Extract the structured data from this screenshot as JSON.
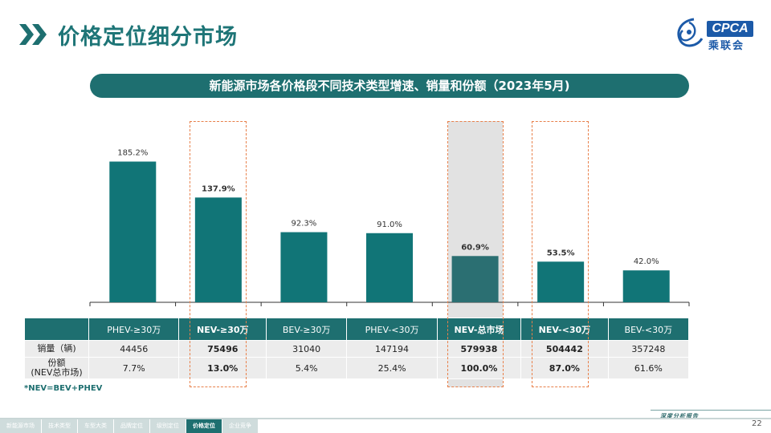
{
  "header": {
    "title": "价格定位细分市场",
    "logo_text": "CPCA",
    "logo_sub": "乘联会"
  },
  "subtitle": "新能源市场各价格段不同技术类型增速、销量和份额（2023年5月)",
  "chart_data": {
    "type": "bar",
    "categories": [
      "PHEV-≥30万",
      "NEV-≥30万",
      "BEV-≥30万",
      "PHEV-<30万",
      "NEV-总市场",
      "NEV-<30万",
      "BEV-<30万"
    ],
    "values": [
      185.2,
      137.9,
      92.3,
      91.0,
      60.9,
      53.5,
      42.0
    ],
    "data_labels": [
      "185.2%",
      "137.9%",
      "92.3%",
      "91.0%",
      "60.9%",
      "53.5%",
      "42.0%"
    ],
    "bold_labels": [
      false,
      true,
      false,
      false,
      true,
      true,
      false
    ],
    "ylim": [
      0,
      210
    ],
    "bar_color": "#117577",
    "total_bar_color": "#2b6f72"
  },
  "table": {
    "headers": [
      "PHEV-≥30万",
      "NEV-≥30万",
      "BEV-≥30万",
      "PHEV-<30万",
      "NEV-总市场",
      "NEV-<30万",
      "BEV-<30万"
    ],
    "rows": [
      {
        "label": "销量（辆)",
        "cells": [
          "44456",
          "75496",
          "31040",
          "147194",
          "579938",
          "504442",
          "357248"
        ]
      },
      {
        "label_line1": "份额",
        "label_line2": "(NEV总市场)",
        "cells": [
          "7.7%",
          "13.0%",
          "5.4%",
          "25.4%",
          "100.0%",
          "87.0%",
          "61.6%"
        ]
      }
    ]
  },
  "footnote": "*NEV=BEV+PHEV",
  "footer": {
    "slogan": "深度分析报告",
    "page_number": "22",
    "nav": [
      "新能源市场",
      "技术类型",
      "车型大类",
      "品牌定位",
      "级别定位",
      "价格定位",
      "企业竞争"
    ],
    "active_nav": 5
  },
  "colors": {
    "accent": "#1e6f70",
    "highlight_border": "#e8804a"
  }
}
